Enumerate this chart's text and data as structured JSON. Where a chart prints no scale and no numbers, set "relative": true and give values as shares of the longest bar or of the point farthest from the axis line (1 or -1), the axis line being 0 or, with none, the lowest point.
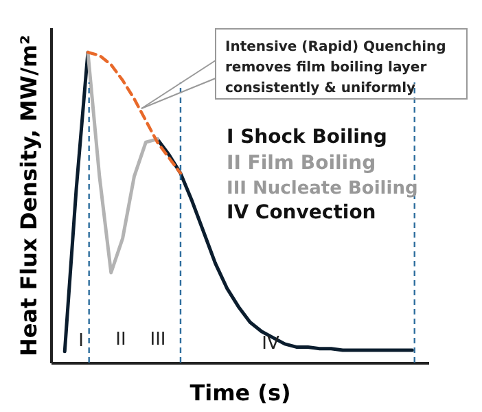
{
  "chart_data": {
    "type": "line",
    "relative": true,
    "xlabel": "Time (s)",
    "ylabel": "Heat Flux Density, MW/m²",
    "categories": [
      null,
      null,
      null,
      null,
      null,
      null,
      null,
      null,
      null,
      null,
      null,
      null,
      null,
      null,
      null,
      null,
      null,
      null,
      null,
      null,
      null,
      null,
      null,
      null,
      null,
      null,
      null,
      null,
      null,
      null,
      null
    ],
    "grid": false,
    "series": [
      {
        "color": "#0b1d2e",
        "values": [
          0.036,
          0.56,
          1.0,
          null,
          null,
          null,
          null,
          null,
          0.72,
          0.67,
          0.61,
          0.52,
          0.42,
          0.32,
          0.24,
          0.18,
          0.13,
          0.1,
          0.08,
          0.06,
          0.05,
          0.05,
          0.045,
          0.045,
          0.04,
          0.04,
          0.04,
          0.04,
          0.04,
          0.04,
          0.04
        ]
      },
      {
        "color": "#b3b3b3",
        "values": [
          null,
          null,
          1.0,
          0.6,
          0.29,
          0.4,
          0.6,
          0.71,
          0.72,
          null,
          null,
          null,
          null,
          null,
          null,
          null,
          null,
          null,
          null,
          null,
          null,
          null,
          null,
          null,
          null,
          null,
          null,
          null,
          null,
          null,
          null
        ]
      },
      {
        "color": "#e8692a",
        "line_style": "dashed",
        "values": [
          null,
          null,
          1.0,
          0.99,
          0.96,
          0.91,
          0.85,
          0.78,
          0.71,
          0.66,
          0.61,
          null,
          null,
          null,
          null,
          null,
          null,
          null,
          null,
          null,
          null,
          null,
          null,
          null,
          null,
          null,
          null,
          null,
          null,
          null,
          null
        ]
      }
    ],
    "annotations": [
      "Intensive (Rapid) Quenching\nremoves film boiling layer\nconsistently & uniformly",
      "I Shock Boiling",
      "II  Film Boiling",
      "III Nucleate Boiling",
      "IV Convection",
      "I",
      "II",
      "III",
      "IV"
    ]
  }
}
